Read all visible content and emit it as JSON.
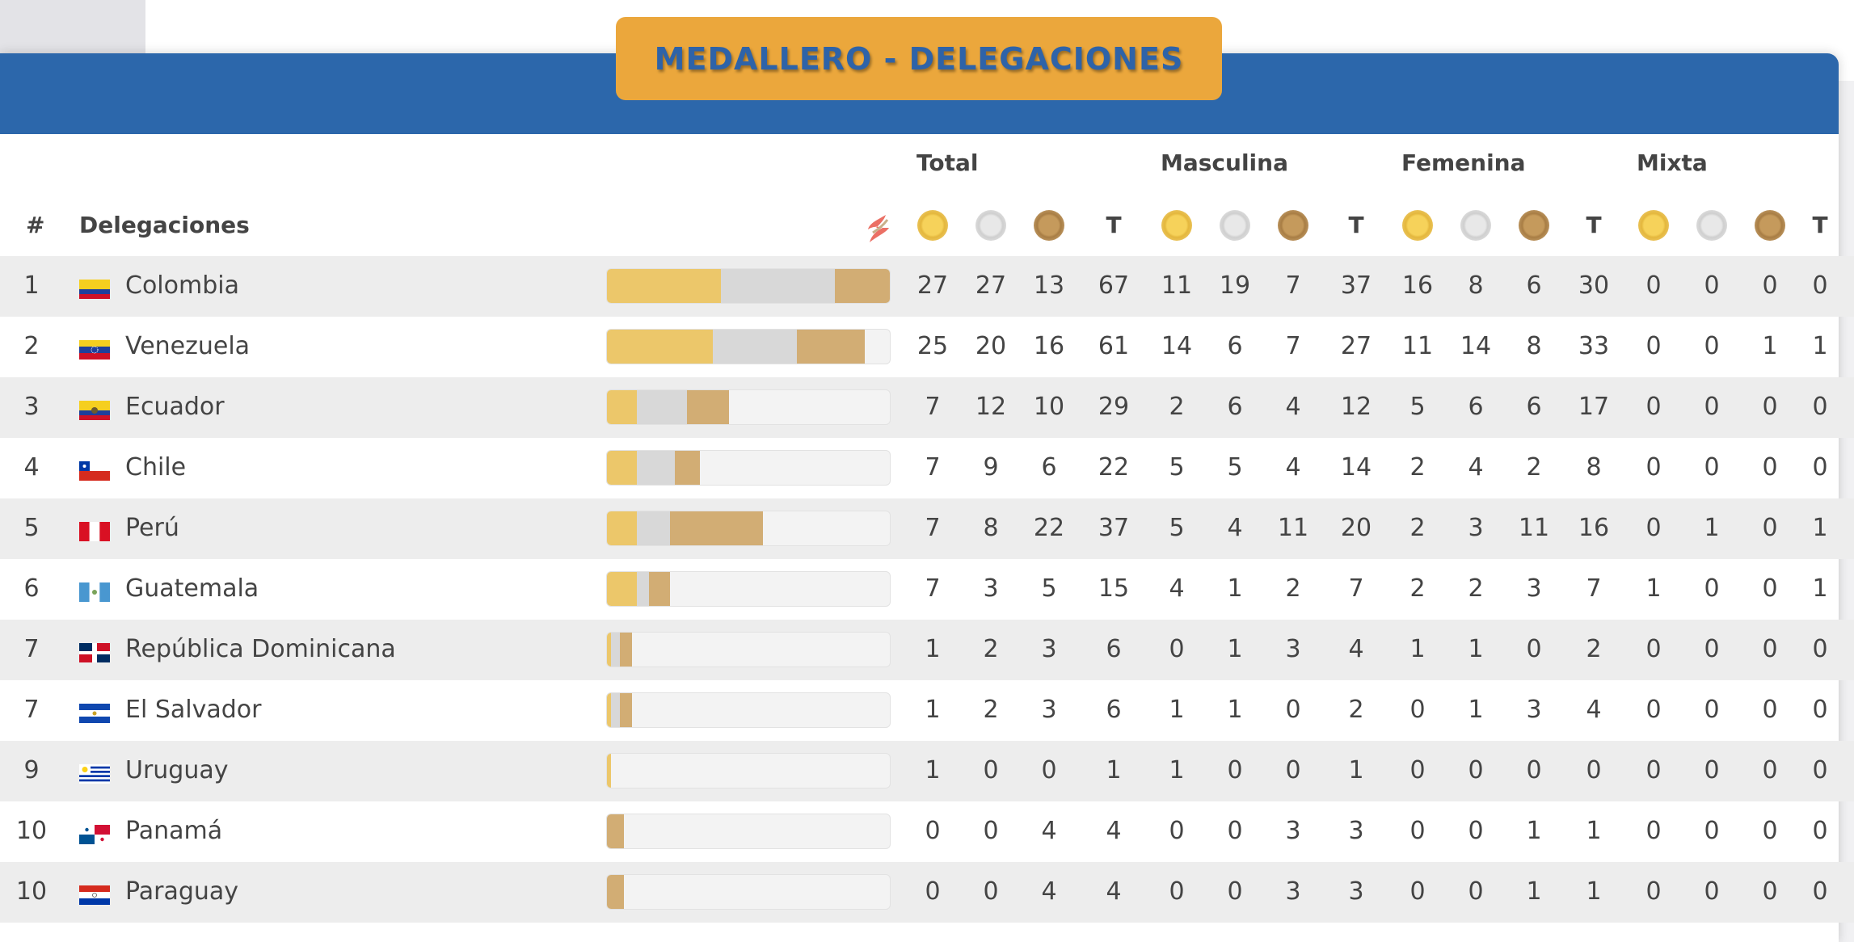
{
  "title": "MEDALLERO - DELEGACIONES",
  "groups": {
    "total": "Total",
    "masculina": "Masculina",
    "femenina": "Femenina",
    "mixta": "Mixta"
  },
  "headers": {
    "rank": "#",
    "delegations": "Delegaciones",
    "total_col": "T"
  },
  "icons": {
    "logo": "sports-logo-icon",
    "gold": "gold-medal-icon",
    "silver": "silver-medal-icon",
    "bronze": "bronze-medal-icon"
  },
  "colors": {
    "band": "#2c67ab",
    "title_bg": "#eba73c",
    "title_text": "#2e63a8",
    "gold": "#ecc76a",
    "silver": "#d8d8d8",
    "bronze": "#d2ad74"
  },
  "bar_max_medals": 67,
  "rows": [
    {
      "rank": "1",
      "flag": "colombia",
      "name": "Colombia",
      "total": [
        "27",
        "27",
        "13",
        "67"
      ],
      "masculina": [
        "11",
        "19",
        "7",
        "37"
      ],
      "femenina": [
        "16",
        "8",
        "6",
        "30"
      ],
      "mixta": [
        "0",
        "0",
        "0",
        "0"
      ]
    },
    {
      "rank": "2",
      "flag": "venezuela",
      "name": "Venezuela",
      "total": [
        "25",
        "20",
        "16",
        "61"
      ],
      "masculina": [
        "14",
        "6",
        "7",
        "27"
      ],
      "femenina": [
        "11",
        "14",
        "8",
        "33"
      ],
      "mixta": [
        "0",
        "0",
        "1",
        "1"
      ]
    },
    {
      "rank": "3",
      "flag": "ecuador",
      "name": "Ecuador",
      "total": [
        "7",
        "12",
        "10",
        "29"
      ],
      "masculina": [
        "2",
        "6",
        "4",
        "12"
      ],
      "femenina": [
        "5",
        "6",
        "6",
        "17"
      ],
      "mixta": [
        "0",
        "0",
        "0",
        "0"
      ]
    },
    {
      "rank": "4",
      "flag": "chile",
      "name": "Chile",
      "total": [
        "7",
        "9",
        "6",
        "22"
      ],
      "masculina": [
        "5",
        "5",
        "4",
        "14"
      ],
      "femenina": [
        "2",
        "4",
        "2",
        "8"
      ],
      "mixta": [
        "0",
        "0",
        "0",
        "0"
      ]
    },
    {
      "rank": "5",
      "flag": "peru",
      "name": "Perú",
      "total": [
        "7",
        "8",
        "22",
        "37"
      ],
      "masculina": [
        "5",
        "4",
        "11",
        "20"
      ],
      "femenina": [
        "2",
        "3",
        "11",
        "16"
      ],
      "mixta": [
        "0",
        "1",
        "0",
        "1"
      ]
    },
    {
      "rank": "6",
      "flag": "guatemala",
      "name": "Guatemala",
      "total": [
        "7",
        "3",
        "5",
        "15"
      ],
      "masculina": [
        "4",
        "1",
        "2",
        "7"
      ],
      "femenina": [
        "2",
        "2",
        "3",
        "7"
      ],
      "mixta": [
        "1",
        "0",
        "0",
        "1"
      ]
    },
    {
      "rank": "7",
      "flag": "dominicana",
      "name": "República Dominicana",
      "total": [
        "1",
        "2",
        "3",
        "6"
      ],
      "masculina": [
        "0",
        "1",
        "3",
        "4"
      ],
      "femenina": [
        "1",
        "1",
        "0",
        "2"
      ],
      "mixta": [
        "0",
        "0",
        "0",
        "0"
      ]
    },
    {
      "rank": "7",
      "flag": "salvador",
      "name": "El Salvador",
      "total": [
        "1",
        "2",
        "3",
        "6"
      ],
      "masculina": [
        "1",
        "1",
        "0",
        "2"
      ],
      "femenina": [
        "0",
        "1",
        "3",
        "4"
      ],
      "mixta": [
        "0",
        "0",
        "0",
        "0"
      ]
    },
    {
      "rank": "9",
      "flag": "uruguay",
      "name": "Uruguay",
      "total": [
        "1",
        "0",
        "0",
        "1"
      ],
      "masculina": [
        "1",
        "0",
        "0",
        "1"
      ],
      "femenina": [
        "0",
        "0",
        "0",
        "0"
      ],
      "mixta": [
        "0",
        "0",
        "0",
        "0"
      ]
    },
    {
      "rank": "10",
      "flag": "panama",
      "name": "Panamá",
      "total": [
        "0",
        "0",
        "4",
        "4"
      ],
      "masculina": [
        "0",
        "0",
        "3",
        "3"
      ],
      "femenina": [
        "0",
        "0",
        "1",
        "1"
      ],
      "mixta": [
        "0",
        "0",
        "0",
        "0"
      ]
    },
    {
      "rank": "10",
      "flag": "paraguay",
      "name": "Paraguay",
      "total": [
        "0",
        "0",
        "4",
        "4"
      ],
      "masculina": [
        "0",
        "0",
        "3",
        "3"
      ],
      "femenina": [
        "0",
        "0",
        "1",
        "1"
      ],
      "mixta": [
        "0",
        "0",
        "0",
        "0"
      ]
    }
  ]
}
